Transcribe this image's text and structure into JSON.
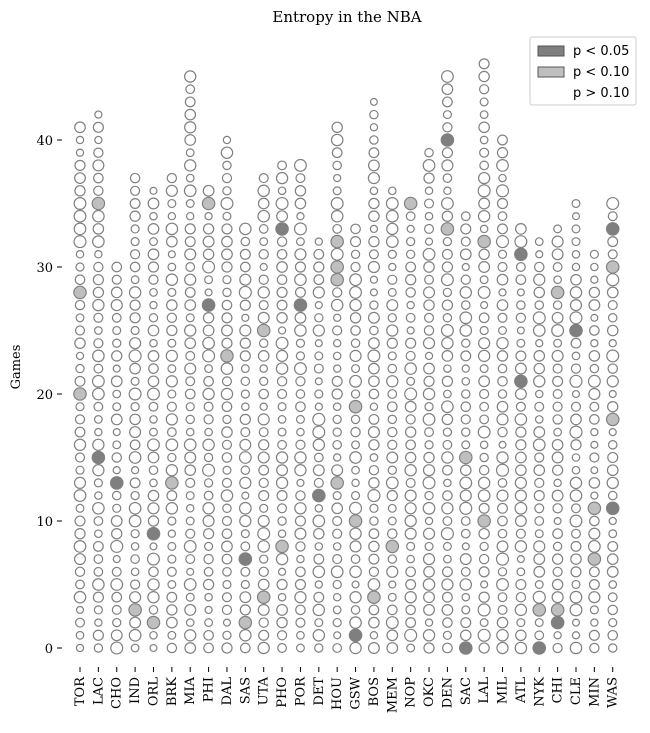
{
  "chart_data": {
    "type": "scatter",
    "title": "Entropy in the NBA",
    "xlabel": "",
    "ylabel": "Games",
    "ylim": [
      -1.5,
      47.5
    ],
    "yticks": [
      0,
      10,
      20,
      30,
      40
    ],
    "grid": false,
    "legend_position": "top-right",
    "legend": [
      {
        "label": "p < 0.05",
        "color": "#7f7f7f"
      },
      {
        "label": "p < 0.10",
        "color": "#bfbfbf"
      },
      {
        "label": "p > 0.10",
        "color": "#ffffff"
      }
    ],
    "colors": {
      "edge": "#808080",
      "p05": "#7f7f7f",
      "p10": "#bfbfbf",
      "none": "#ffffff"
    },
    "teams": [
      {
        "abbr": "TOR",
        "games": 41,
        "p05": [],
        "p10": [
          20,
          28
        ]
      },
      {
        "abbr": "LAC",
        "games": 42,
        "p05": [
          15
        ],
        "p10": [
          35
        ]
      },
      {
        "abbr": "CHO",
        "games": 30,
        "p05": [
          13
        ],
        "p10": []
      },
      {
        "abbr": "IND",
        "games": 37,
        "p05": [],
        "p10": [
          3
        ]
      },
      {
        "abbr": "ORL",
        "games": 36,
        "p05": [
          9
        ],
        "p10": [
          2
        ]
      },
      {
        "abbr": "BRK",
        "games": 37,
        "p05": [],
        "p10": [
          13
        ]
      },
      {
        "abbr": "MIA",
        "games": 45,
        "p05": [],
        "p10": []
      },
      {
        "abbr": "PHI",
        "games": 36,
        "p05": [
          27
        ],
        "p10": [
          35
        ]
      },
      {
        "abbr": "DAL",
        "games": 40,
        "p05": [],
        "p10": [
          23
        ]
      },
      {
        "abbr": "SAS",
        "games": 33,
        "p05": [
          7
        ],
        "p10": [
          2
        ]
      },
      {
        "abbr": "UTA",
        "games": 37,
        "p05": [],
        "p10": [
          4,
          25
        ]
      },
      {
        "abbr": "PHO",
        "games": 38,
        "p05": [
          33
        ],
        "p10": [
          8
        ]
      },
      {
        "abbr": "POR",
        "games": 38,
        "p05": [
          27
        ],
        "p10": []
      },
      {
        "abbr": "DET",
        "games": 32,
        "p05": [
          12
        ],
        "p10": []
      },
      {
        "abbr": "HOU",
        "games": 41,
        "p05": [],
        "p10": [
          13,
          29,
          30,
          32
        ]
      },
      {
        "abbr": "GSW",
        "games": 33,
        "p05": [
          1
        ],
        "p10": [
          10,
          19
        ]
      },
      {
        "abbr": "BOS",
        "games": 43,
        "p05": [],
        "p10": [
          4
        ]
      },
      {
        "abbr": "MEM",
        "games": 36,
        "p05": [],
        "p10": [
          8
        ]
      },
      {
        "abbr": "NOP",
        "games": 35,
        "p05": [],
        "p10": [
          35
        ]
      },
      {
        "abbr": "OKC",
        "games": 39,
        "p05": [],
        "p10": []
      },
      {
        "abbr": "DEN",
        "games": 45,
        "p05": [
          40
        ],
        "p10": [
          33
        ]
      },
      {
        "abbr": "SAC",
        "games": 34,
        "p05": [
          0
        ],
        "p10": [
          15
        ]
      },
      {
        "abbr": "LAL",
        "games": 46,
        "p05": [],
        "p10": [
          10,
          32
        ]
      },
      {
        "abbr": "MIL",
        "games": 40,
        "p05": [],
        "p10": []
      },
      {
        "abbr": "ATL",
        "games": 33,
        "p05": [
          21,
          31
        ],
        "p10": []
      },
      {
        "abbr": "NYK",
        "games": 32,
        "p05": [
          0
        ],
        "p10": [
          3
        ]
      },
      {
        "abbr": "CHI",
        "games": 33,
        "p05": [
          2
        ],
        "p10": [
          3,
          28
        ]
      },
      {
        "abbr": "CLE",
        "games": 35,
        "p05": [
          25
        ],
        "p10": []
      },
      {
        "abbr": "MIN",
        "games": 31,
        "p05": [],
        "p10": [
          7,
          11
        ]
      },
      {
        "abbr": "WAS",
        "games": 35,
        "p05": [
          11,
          33
        ],
        "p10": [
          18,
          30
        ]
      }
    ]
  }
}
